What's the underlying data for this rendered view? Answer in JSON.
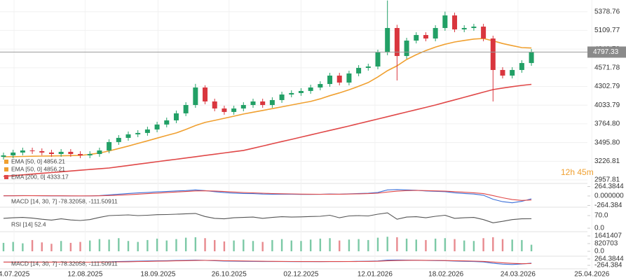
{
  "chart_data": [
    {
      "type": "candlestick",
      "open": [
        3290,
        3311,
        3352,
        3382,
        3372,
        3352,
        3331,
        3362,
        3331,
        3311,
        3331,
        3382,
        3503,
        3563,
        3614,
        3634,
        3684,
        3755,
        3815,
        3916,
        4036,
        4288,
        4087,
        3986,
        3936,
        3986,
        4036,
        4087,
        4036,
        4107,
        4187,
        4208,
        4238,
        4288,
        4338,
        4459,
        4359,
        4490,
        4570,
        4590,
        4792,
        5144,
        4741,
        4963,
        5043,
        4993,
        5144,
        5325,
        5124,
        5144,
        5164,
        4993,
        4540,
        4459,
        4540,
        4640
      ],
      "high": [
        3351,
        3392,
        3422,
        3422,
        3412,
        3392,
        3402,
        3402,
        3371,
        3371,
        3422,
        3543,
        3603,
        3654,
        3674,
        3724,
        3795,
        3855,
        3956,
        4076,
        4340,
        4320,
        4127,
        4026,
        4026,
        4076,
        4127,
        4127,
        4147,
        4227,
        4248,
        4278,
        4328,
        4378,
        4499,
        4499,
        4530,
        4610,
        4630,
        4832,
        5540,
        5190,
        5003,
        5083,
        5083,
        5184,
        5380,
        5365,
        5184,
        5204,
        5204,
        5033,
        4580,
        4580,
        4680,
        4840
      ],
      "low": [
        3250,
        3271,
        3312,
        3332,
        3312,
        3291,
        3291,
        3291,
        3271,
        3271,
        3291,
        3342,
        3463,
        3523,
        3574,
        3594,
        3644,
        3715,
        3775,
        3876,
        3996,
        4047,
        3946,
        3896,
        3896,
        3946,
        3996,
        3996,
        3996,
        4067,
        4147,
        4168,
        4198,
        4248,
        4298,
        4319,
        4319,
        4450,
        4530,
        4550,
        4752,
        4389,
        4701,
        4923,
        4953,
        4953,
        5104,
        5084,
        5084,
        5104,
        4953,
        4087,
        4419,
        4419,
        4500,
        4600
      ],
      "close": [
        3311,
        3352,
        3382,
        3372,
        3352,
        3331,
        3362,
        3331,
        3311,
        3331,
        3382,
        3503,
        3563,
        3614,
        3634,
        3684,
        3755,
        3815,
        3916,
        4036,
        4288,
        4087,
        3986,
        3936,
        3986,
        4036,
        4087,
        4036,
        4107,
        4187,
        4208,
        4238,
        4288,
        4338,
        4459,
        4359,
        4490,
        4570,
        4590,
        4792,
        5144,
        4741,
        4963,
        5043,
        4993,
        5144,
        5325,
        5124,
        5144,
        5164,
        4993,
        4540,
        4459,
        4540,
        4640,
        4797.33
      ],
      "up_color": "#22a066",
      "down_color": "#d9363e",
      "series": [
        {
          "name": "EMA [50, 0] 4856.21",
          "color": "#f0a030",
          "values": [
            3291,
            3293,
            3296,
            3299,
            3301,
            3303,
            3305,
            3308,
            3311,
            3325,
            3345,
            3375,
            3410,
            3445,
            3483,
            3520,
            3560,
            3598,
            3634,
            3685,
            3740,
            3785,
            3815,
            3845,
            3875,
            3906,
            3932,
            3958,
            3984,
            4010,
            4036,
            4062,
            4087,
            4125,
            4170,
            4210,
            4255,
            4305,
            4359,
            4440,
            4530,
            4600,
            4691,
            4760,
            4820,
            4870,
            4910,
            4943,
            4965,
            4985,
            4993,
            4960,
            4920,
            4890,
            4862,
            4856.21
          ]
        },
        {
          "name": "EMA [200, 0] 4333.17",
          "color": "#e04848",
          "values": [
            3009,
            3020,
            3031,
            3042,
            3053,
            3064,
            3075,
            3086,
            3097,
            3108,
            3119,
            3130,
            3148,
            3166,
            3184,
            3202,
            3220,
            3238,
            3256,
            3274,
            3292,
            3310,
            3328,
            3346,
            3364,
            3382,
            3414,
            3446,
            3478,
            3510,
            3542,
            3574,
            3606,
            3638,
            3670,
            3702,
            3734,
            3768,
            3801,
            3835,
            3868,
            3902,
            3935,
            3969,
            4002,
            4036,
            4073,
            4110,
            4147,
            4184,
            4221,
            4258,
            4280,
            4300,
            4318,
            4333.17
          ]
        }
      ],
      "annotations": [
        "EMA [50, 0] 4856.21",
        "12h 45m"
      ],
      "last_price": 4797.33,
      "ylim": [
        2908,
        5547
      ],
      "yticks": [
        2957.81,
        3226.81,
        {
          "value": 3495.8,
          "label": "3495.80"
        },
        {
          "value": 3764.8,
          "label": "3764.80"
        },
        4033.79,
        4302.79,
        4571.78,
        4840.78,
        5109.77,
        5378.76
      ],
      "xlim": [
        0,
        65
      ],
      "xticks": [
        {
          "value": 1.1,
          "label": "4.07.2025"
        },
        {
          "value": 8.5,
          "label": "12.08.2025"
        },
        {
          "value": 16.1,
          "label": "18.09.2025"
        },
        {
          "value": 23.5,
          "label": "26.10.2025"
        },
        {
          "value": 31,
          "label": "02.12.2025"
        },
        {
          "value": 38.7,
          "label": "12.01.2026"
        },
        {
          "value": 46.1,
          "label": "18.02.2026"
        },
        {
          "value": 53.6,
          "label": "24.03.2026"
        },
        {
          "value": 61.3,
          "label": "25.04.2026"
        }
      ],
      "grid": true
    },
    {
      "type": "line",
      "title": "MACD [14, 30, 7] -78.32058, -111.50911",
      "series": [
        {
          "color": "#3b6fd8",
          "values": [
            5,
            8,
            10,
            9,
            6,
            3,
            4,
            2,
            0,
            2,
            10,
            30,
            50,
            70,
            85,
            100,
            115,
            125,
            140,
            150,
            170,
            150,
            120,
            95,
            80,
            70,
            65,
            55,
            50,
            50,
            48,
            45,
            45,
            46,
            55,
            50,
            60,
            70,
            75,
            100,
            170,
            180,
            170,
            160,
            140,
            130,
            120,
            90,
            70,
            55,
            20,
            -90,
            -160,
            -190,
            -150,
            -78.32058
          ]
        },
        {
          "color": "#e04848",
          "values": [
            5,
            6,
            7,
            8,
            7,
            6,
            5,
            4,
            3,
            3,
            5,
            12,
            22,
            35,
            50,
            65,
            80,
            95,
            110,
            125,
            140,
            145,
            138,
            125,
            110,
            98,
            88,
            77,
            68,
            62,
            57,
            53,
            50,
            49,
            51,
            51,
            54,
            60,
            66,
            78,
            110,
            135,
            150,
            155,
            150,
            143,
            135,
            120,
            105,
            90,
            65,
            10,
            -50,
            -100,
            -125,
            -111.50911
          ]
        }
      ],
      "ylim": [
        -314,
        332
      ],
      "yticks": [
        264.3844,
        {
          "value": 0,
          "label": "0.000000"
        },
        -264.384
      ]
    },
    {
      "type": "line",
      "title": "RSI [14] 52.4",
      "series": [
        {
          "color": "#555555",
          "values": [
            55,
            58,
            60,
            56,
            50,
            45,
            52,
            46,
            43,
            48,
            60,
            70,
            72,
            74,
            70,
            72,
            75,
            76,
            78,
            80,
            82,
            65,
            55,
            52,
            58,
            60,
            62,
            55,
            60,
            64,
            62,
            63,
            65,
            66,
            72,
            58,
            68,
            70,
            68,
            78,
            85,
            50,
            62,
            64,
            58,
            66,
            72,
            55,
            58,
            60,
            48,
            30,
            38,
            48,
            52,
            52.4
          ]
        }
      ],
      "ylim": [
        -19.4,
        112.8
      ],
      "yticks": [
        {
          "value": 70,
          "label": "70.0"
        },
        {
          "value": 0,
          "label": "0.0"
        }
      ]
    },
    {
      "type": "bar",
      "values": [
        900000,
        1000000,
        850000,
        1200000,
        950000,
        800000,
        1100000,
        900000,
        1000000,
        1150000,
        1300000,
        1250000,
        1400000,
        1100000,
        1000000,
        1200000,
        1350000,
        1150000,
        1300000,
        1450000,
        1500000,
        1400000,
        1200000,
        1050000,
        1150000,
        1250000,
        1100000,
        1000000,
        1200000,
        1300000,
        1150000,
        1100000,
        1250000,
        1350000,
        1400000,
        1150000,
        1250000,
        1300000,
        1200000,
        1450000,
        1550000,
        1500000,
        1350000,
        1250000,
        1200000,
        1350000,
        1400000,
        1300000,
        1150000,
        1100000,
        1400000,
        1500000,
        1300000,
        1250000,
        1200000,
        700000
      ],
      "ylim": [
        -522266,
        1939843
      ],
      "yticks": [
        1641407,
        820703,
        {
          "value": 0,
          "label": "0.0"
        }
      ]
    }
  ]
}
